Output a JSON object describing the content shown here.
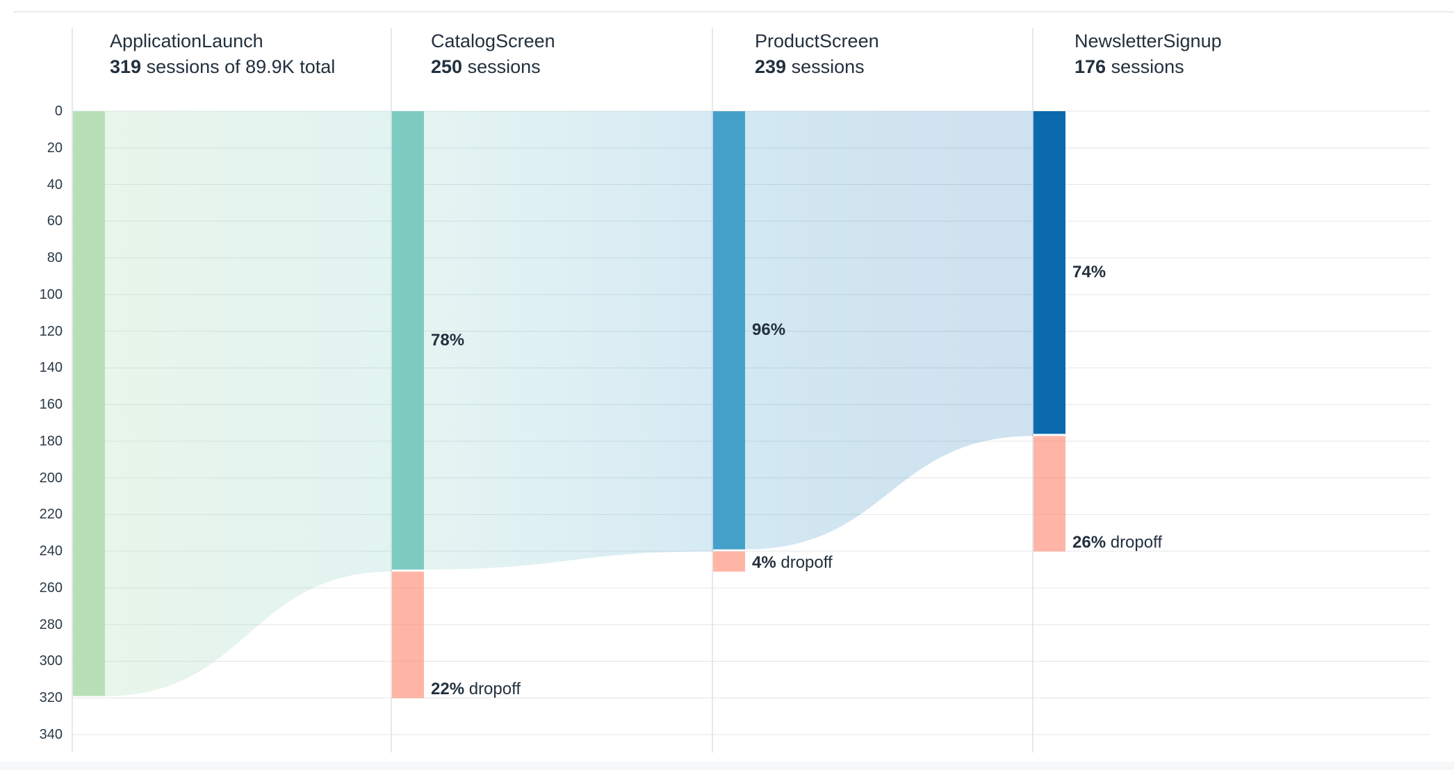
{
  "chart_data": {
    "type": "funnel",
    "title": "",
    "steps": [
      {
        "label": "ApplicationLaunch",
        "sessions": 319,
        "sessions_suffix": " sessions of 89.9K total",
        "conversion_pct": null,
        "dropoff": null,
        "bar_color": "#b7e0b9"
      },
      {
        "label": "CatalogScreen",
        "sessions": 250,
        "sessions_suffix": " sessions",
        "conversion_pct": "78%",
        "dropoff": {
          "pct": "22%",
          "word": "dropoff"
        },
        "bar_color": "#7dcac1"
      },
      {
        "label": "ProductScreen",
        "sessions": 239,
        "sessions_suffix": " sessions",
        "conversion_pct": "96%",
        "dropoff": {
          "pct": "4%",
          "word": "dropoff"
        },
        "bar_color": "#45a0c9"
      },
      {
        "label": "NewsletterSignup",
        "sessions": 176,
        "sessions_suffix": " sessions",
        "conversion_pct": "74%",
        "dropoff": {
          "pct": "26%",
          "word": "dropoff"
        },
        "bar_color": "#0a6aad"
      }
    ],
    "total_sessions_text": "89.9K",
    "yaxis": {
      "min": 0,
      "max": 340,
      "step": 20
    },
    "grid": true,
    "legend": "none",
    "dropoff_color": "rgba(255,127,102,0.58)",
    "band_gradients": [
      {
        "from": "rgba(183,224,185,0.30)",
        "to": "rgba(125,202,193,0.22)"
      },
      {
        "from": "rgba(125,202,193,0.20)",
        "to": "rgba(69,160,201,0.22)"
      },
      {
        "from": "rgba(69,160,201,0.24)",
        "to": "rgba(10,106,173,0.20)"
      }
    ],
    "colors": {
      "hgrid": "#e4e5e7",
      "vgrid": "#dde1e5",
      "text": "#22303e",
      "topline": "#e8edf0",
      "footer": "#f5f7f8"
    }
  }
}
